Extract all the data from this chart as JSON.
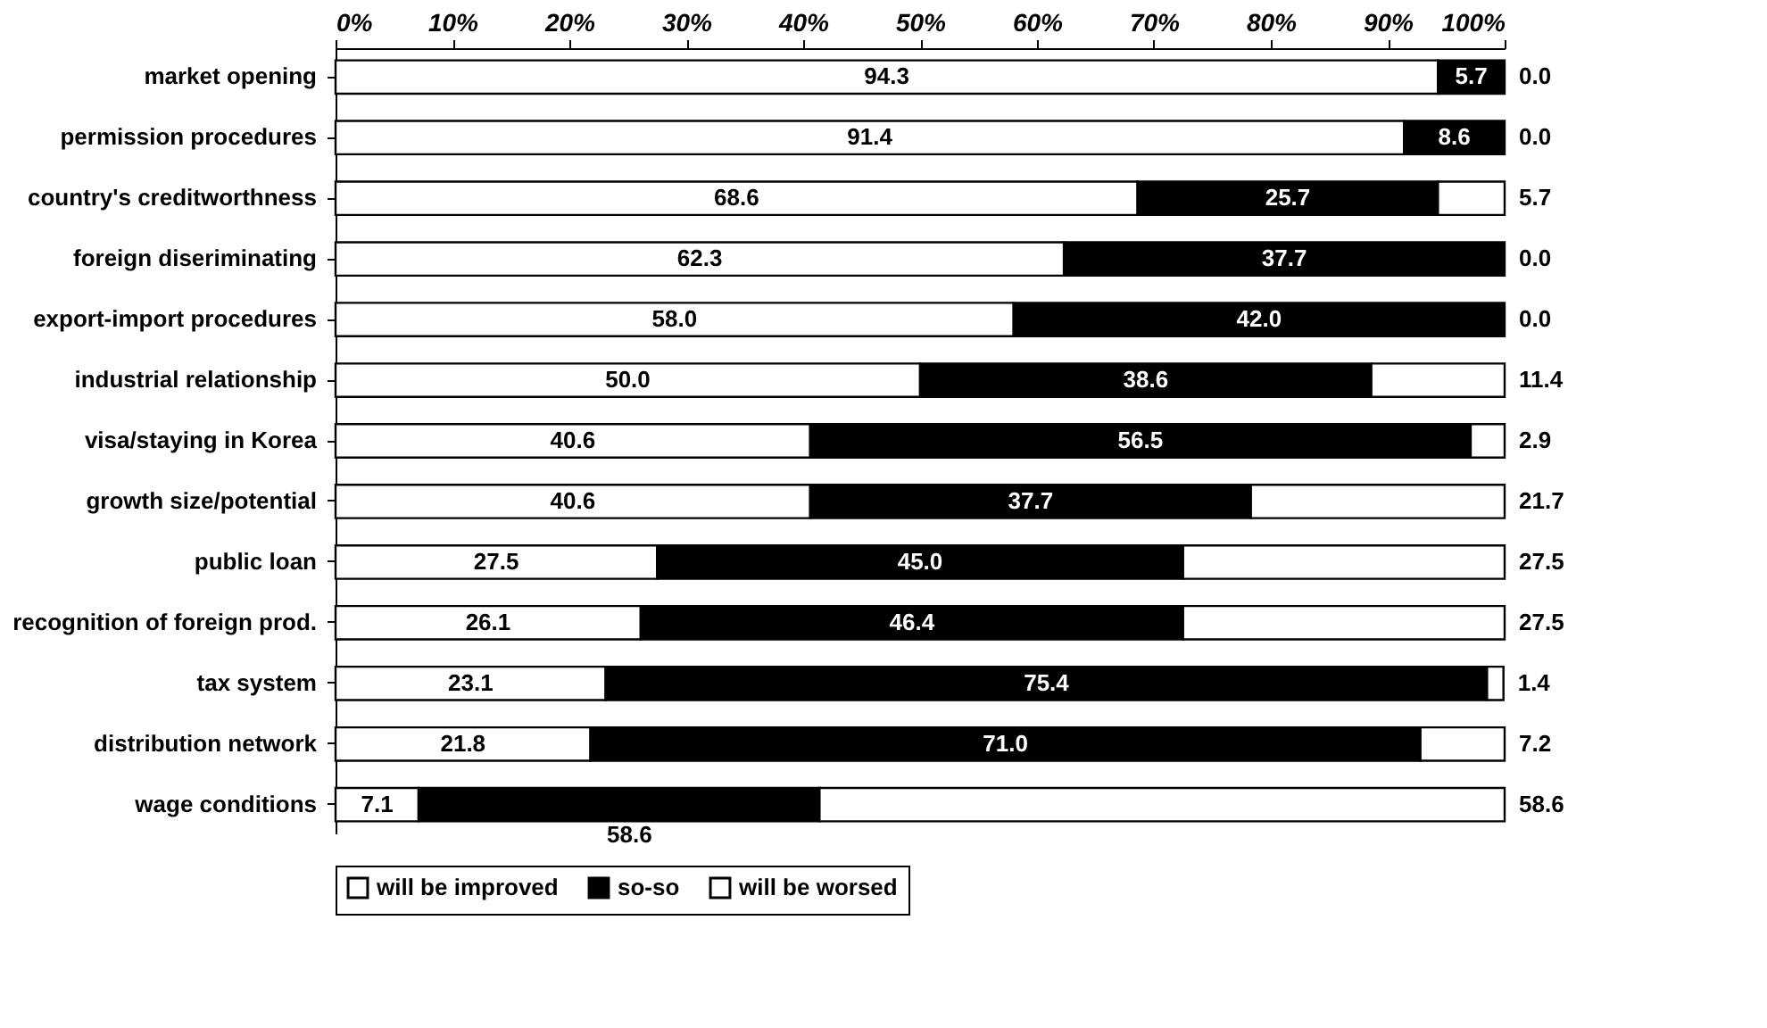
{
  "chart_data": {
    "type": "bar",
    "orientation": "horizontal",
    "stacked": true,
    "categories": [
      "market opening",
      "permission procedures",
      "country's creditworthness",
      "foreign diseriminating",
      "export-import procedures",
      "industrial relationship",
      "visa/staying in Korea",
      "growth size/potential",
      "public loan",
      "recognition of foreign prod.",
      "tax system",
      "distribution network",
      "wage conditions"
    ],
    "series": [
      {
        "name": "will be improved",
        "color": "#ffffff",
        "values": [
          94.3,
          91.4,
          68.6,
          62.3,
          58.0,
          50.0,
          40.6,
          40.6,
          27.5,
          26.1,
          23.1,
          21.8,
          7.1
        ],
        "value_labels": [
          "94.3",
          "91.4",
          "68.6",
          "62.3",
          "58.0",
          "50.0",
          "40.6",
          "40.6",
          "27.5",
          "26.1",
          "23.1",
          "21.8",
          "7.1"
        ]
      },
      {
        "name": "so-so",
        "color": "#000000",
        "values": [
          5.7,
          8.6,
          25.7,
          37.7,
          42.0,
          38.6,
          56.5,
          37.7,
          45.0,
          46.4,
          75.4,
          71.0,
          34.3
        ],
        "value_labels": [
          "5.7",
          "8.6",
          "25.7",
          "37.7",
          "42.0",
          "38.6",
          "56.5",
          "37.7",
          "45.0",
          "46.4",
          "75.4",
          "71.0",
          null
        ]
      },
      {
        "name": "will be worsed",
        "color": "#ffffff",
        "values": [
          0.0,
          0.0,
          5.7,
          0.0,
          0.0,
          11.4,
          2.9,
          21.7,
          27.5,
          27.5,
          1.4,
          7.2,
          58.6
        ],
        "value_labels": [
          "0.0",
          "0.0",
          "5.7",
          "0.0",
          "0.0",
          "11.4",
          "2.9",
          "21.7",
          "27.5",
          "27.5",
          "1.4",
          "7.2",
          "58.6"
        ]
      }
    ],
    "xlim": [
      0,
      100
    ],
    "xticks": [
      {
        "value": 0,
        "label": "0%"
      },
      {
        "value": 10,
        "label": "10%"
      },
      {
        "value": 20,
        "label": "20%"
      },
      {
        "value": 30,
        "label": "30%"
      },
      {
        "value": 40,
        "label": "40%"
      },
      {
        "value": 50,
        "label": "50%"
      },
      {
        "value": 60,
        "label": "60%"
      },
      {
        "value": 70,
        "label": "70%"
      },
      {
        "value": 80,
        "label": "80%"
      },
      {
        "value": 90,
        "label": "90%"
      },
      {
        "value": 100,
        "label": "100%"
      }
    ],
    "annotations": [
      "58.6"
    ],
    "grid": false,
    "legend": "bottom"
  }
}
